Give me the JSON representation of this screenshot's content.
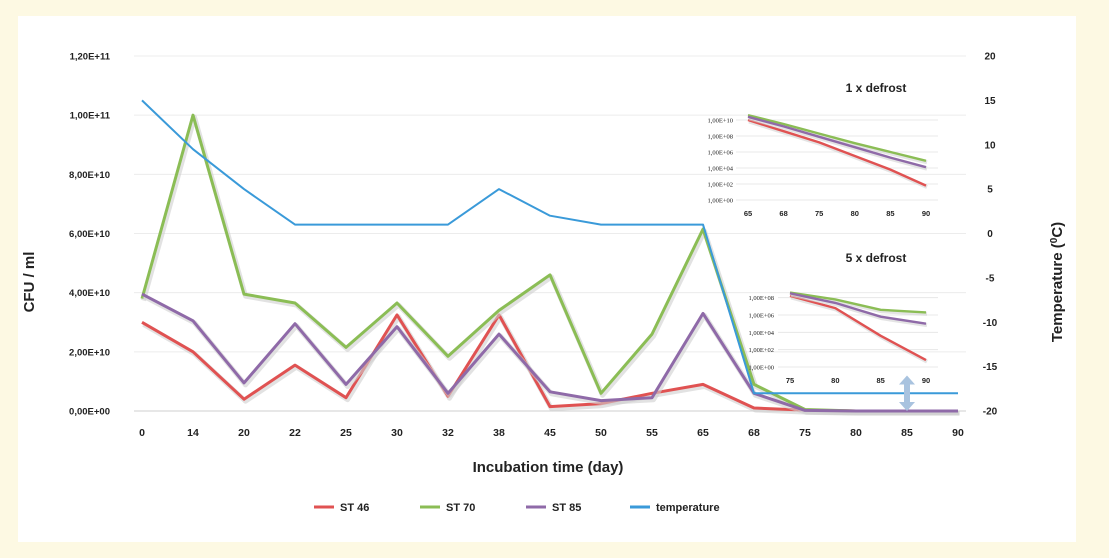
{
  "chart_data": [
    {
      "type": "line",
      "title": "",
      "xlabel": "Incubation time (day)",
      "ylabel": "CFU / ml",
      "y2label": "Temperature (0C)",
      "categories": [
        "0",
        "14",
        "20",
        "22",
        "25",
        "30",
        "32",
        "38",
        "45",
        "50",
        "55",
        "65",
        "68",
        "75",
        "80",
        "85",
        "90"
      ],
      "y_ticks": [
        "0,00E+00",
        "2,00E+10",
        "4,00E+10",
        "6,00E+10",
        "8,00E+10",
        "1,00E+11",
        "1,20E+11"
      ],
      "y_tick_values": [
        0,
        20000000000,
        40000000000,
        60000000000,
        80000000000,
        100000000000,
        120000000000
      ],
      "ylim": [
        0,
        120000000000
      ],
      "y2lim": [
        -20,
        20
      ],
      "y2_ticks": [
        "-20",
        "-15",
        "-10",
        "-5",
        "0",
        "5",
        "10",
        "15",
        "20"
      ],
      "y2_tick_values": [
        -20,
        -15,
        -10,
        -5,
        0,
        5,
        10,
        15,
        20
      ],
      "grid": true,
      "legend_position": "bottom",
      "series": [
        {
          "name": "ST 46",
          "color": "#e05252",
          "axis": "left",
          "values": [
            30000000000,
            20000000000,
            4000000000,
            15500000000,
            4500000000,
            32500000000,
            5000000000,
            32500000000,
            1500000000,
            2500000000,
            6000000000,
            9000000000,
            1000000000,
            300000000,
            0,
            0,
            0
          ]
        },
        {
          "name": "ST 70",
          "color": "#8bbd55",
          "axis": "left",
          "values": [
            38000000000,
            100000000000,
            39500000000,
            36500000000,
            21500000000,
            36500000000,
            18500000000,
            34000000000,
            46000000000,
            6000000000,
            26000000000,
            61500000000,
            9000000000,
            500000000,
            0,
            0,
            0
          ]
        },
        {
          "name": "ST 85",
          "color": "#8f6aa8",
          "axis": "left",
          "values": [
            39500000000,
            30500000000,
            9500000000,
            29500000000,
            9000000000,
            28500000000,
            6000000000,
            26000000000,
            6500000000,
            3500000000,
            4500000000,
            33000000000,
            6000000000,
            200000000,
            0,
            0,
            0
          ]
        },
        {
          "name": "temperature",
          "color": "#3a9ad9",
          "axis": "right",
          "values": [
            15,
            9.5,
            5,
            1,
            1,
            1,
            1,
            5,
            2,
            1,
            1,
            1,
            -18,
            -18,
            -18,
            -18,
            -18
          ]
        }
      ],
      "annotations": [
        {
          "type": "double-arrow",
          "x_category": "85",
          "from_y2": -20,
          "to_y2": -16,
          "color": "#a9c3df"
        }
      ]
    },
    {
      "type": "line",
      "title": "1 x defrost",
      "scale": "log",
      "categories": [
        "65",
        "68",
        "75",
        "80",
        "85",
        "90"
      ],
      "y_ticks": [
        "1,00E+00",
        "1,00E+02",
        "1,00E+04",
        "1,00E+06",
        "1,00E+08",
        "1,00E+10"
      ],
      "ylim_log10": [
        0,
        11
      ],
      "grid": true,
      "series": [
        {
          "name": "ST 46",
          "color": "#e05252",
          "log10_values": [
            10,
            8.6,
            7.2,
            5.5,
            3.8,
            1.8
          ]
        },
        {
          "name": "ST 70",
          "color": "#8bbd55",
          "log10_values": [
            10.6,
            9.5,
            8.3,
            7.1,
            6.0,
            4.9
          ]
        },
        {
          "name": "ST 85",
          "color": "#8f6aa8",
          "log10_values": [
            10.4,
            9.2,
            7.9,
            6.6,
            5.3,
            4.1
          ]
        }
      ]
    },
    {
      "type": "line",
      "title": "5 x defrost",
      "scale": "log",
      "categories": [
        "75",
        "80",
        "85",
        "90"
      ],
      "y_ticks": [
        "1,00E+00",
        "1,00E+02",
        "1,00E+04",
        "1,00E+06",
        "1,00E+08"
      ],
      "ylim_log10": [
        0,
        9
      ],
      "grid": true,
      "series": [
        {
          "name": "ST 46",
          "color": "#e05252",
          "log10_values": [
            8.2,
            6.8,
            3.6,
            0.8
          ]
        },
        {
          "name": "ST 70",
          "color": "#8bbd55",
          "log10_values": [
            8.6,
            7.8,
            6.6,
            6.3
          ]
        },
        {
          "name": "ST 85",
          "color": "#8f6aa8",
          "log10_values": [
            8.5,
            7.4,
            5.8,
            5.0
          ]
        }
      ]
    }
  ],
  "legend": {
    "items": [
      {
        "label": "ST 46",
        "color": "#e05252"
      },
      {
        "label": "ST 70",
        "color": "#8bbd55"
      },
      {
        "label": "ST 85",
        "color": "#8f6aa8"
      },
      {
        "label": "temperature",
        "color": "#3a9ad9"
      }
    ]
  },
  "colors": {
    "page_background": "#fdf9e3",
    "plot_background": "#ffffff",
    "grid": "#e6e6e6"
  }
}
